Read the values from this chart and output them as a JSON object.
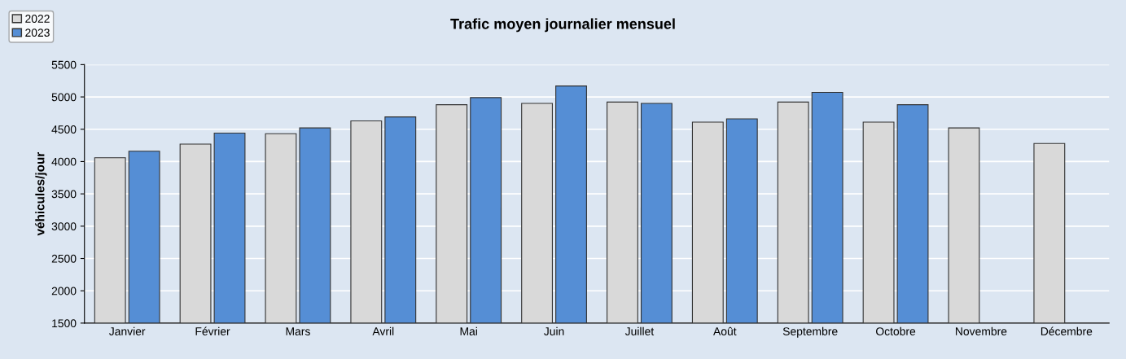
{
  "chart_data": {
    "type": "bar",
    "title": "Trafic moyen journalier mensuel",
    "ylabel": "véhicules/jour",
    "categories": [
      "Janvier",
      "Février",
      "Mars",
      "Avril",
      "Mai",
      "Juin",
      "Juillet",
      "Août",
      "Septembre",
      "Octobre",
      "Novembre",
      "Décembre"
    ],
    "series": [
      {
        "name": "2022",
        "color": "#d9d9d9",
        "values": [
          4060,
          4270,
          4430,
          4630,
          4880,
          4900,
          4920,
          4610,
          4920,
          4610,
          4520,
          4280
        ]
      },
      {
        "name": "2023",
        "color": "#558ed5",
        "values": [
          4160,
          4440,
          4520,
          4690,
          4990,
          5170,
          4900,
          4660,
          5070,
          4880,
          null,
          null
        ]
      }
    ],
    "ylim": [
      1500,
      5500
    ],
    "yticks": [
      1500,
      2000,
      2500,
      3000,
      3500,
      4000,
      4500,
      5000,
      5500
    ],
    "grid": "y",
    "legend": "top left"
  }
}
